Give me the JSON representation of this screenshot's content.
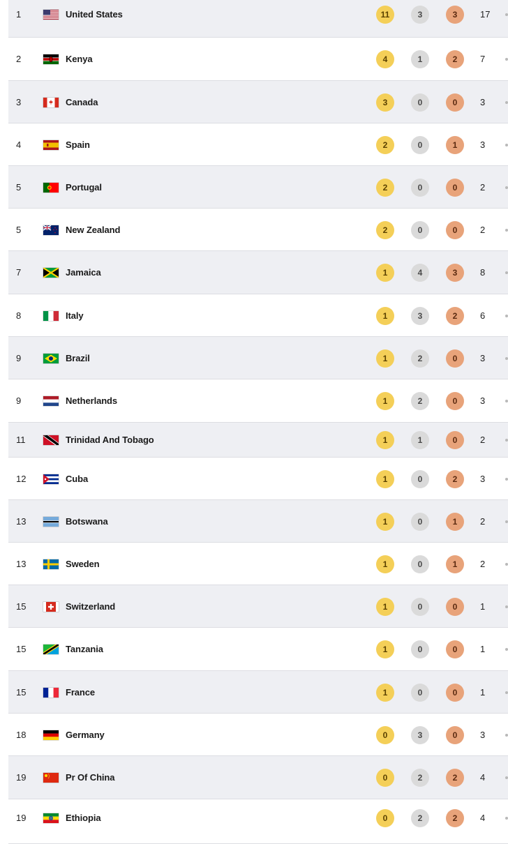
{
  "colors": {
    "row_shaded": "#eeeff3",
    "row_white": "#ffffff",
    "gold": "#f4cf58",
    "silver": "#dadada",
    "bronze": "#e8a37a"
  },
  "rows": [
    {
      "rank": "1",
      "country": "United States",
      "gold": "11",
      "silver": "3",
      "bronze": "3",
      "total": "17",
      "flag": "us-flag-icon"
    },
    {
      "rank": "2",
      "country": "Kenya",
      "gold": "4",
      "silver": "1",
      "bronze": "2",
      "total": "7",
      "flag": "kenya-flag-icon"
    },
    {
      "rank": "3",
      "country": "Canada",
      "gold": "3",
      "silver": "0",
      "bronze": "0",
      "total": "3",
      "flag": "canada-flag-icon"
    },
    {
      "rank": "4",
      "country": "Spain",
      "gold": "2",
      "silver": "0",
      "bronze": "1",
      "total": "3",
      "flag": "spain-flag-icon"
    },
    {
      "rank": "5",
      "country": "Portugal",
      "gold": "2",
      "silver": "0",
      "bronze": "0",
      "total": "2",
      "flag": "portugal-flag-icon"
    },
    {
      "rank": "5",
      "country": "New Zealand",
      "gold": "2",
      "silver": "0",
      "bronze": "0",
      "total": "2",
      "flag": "new-zealand-flag-icon"
    },
    {
      "rank": "7",
      "country": "Jamaica",
      "gold": "1",
      "silver": "4",
      "bronze": "3",
      "total": "8",
      "flag": "jamaica-flag-icon"
    },
    {
      "rank": "8",
      "country": "Italy",
      "gold": "1",
      "silver": "3",
      "bronze": "2",
      "total": "6",
      "flag": "italy-flag-icon"
    },
    {
      "rank": "9",
      "country": "Brazil",
      "gold": "1",
      "silver": "2",
      "bronze": "0",
      "total": "3",
      "flag": "brazil-flag-icon"
    },
    {
      "rank": "9",
      "country": "Netherlands",
      "gold": "1",
      "silver": "2",
      "bronze": "0",
      "total": "3",
      "flag": "netherlands-flag-icon"
    },
    {
      "rank": "11",
      "country": "Trinidad And Tobago",
      "gold": "1",
      "silver": "1",
      "bronze": "0",
      "total": "2",
      "flag": "trinidad-and-tobago-flag-icon"
    },
    {
      "rank": "12",
      "country": "Cuba",
      "gold": "1",
      "silver": "0",
      "bronze": "2",
      "total": "3",
      "flag": "cuba-flag-icon"
    },
    {
      "rank": "13",
      "country": "Botswana",
      "gold": "1",
      "silver": "0",
      "bronze": "1",
      "total": "2",
      "flag": "botswana-flag-icon"
    },
    {
      "rank": "13",
      "country": "Sweden",
      "gold": "1",
      "silver": "0",
      "bronze": "1",
      "total": "2",
      "flag": "sweden-flag-icon"
    },
    {
      "rank": "15",
      "country": "Switzerland",
      "gold": "1",
      "silver": "0",
      "bronze": "0",
      "total": "1",
      "flag": "switzerland-flag-icon"
    },
    {
      "rank": "15",
      "country": "Tanzania",
      "gold": "1",
      "silver": "0",
      "bronze": "0",
      "total": "1",
      "flag": "tanzania-flag-icon"
    },
    {
      "rank": "15",
      "country": "France",
      "gold": "1",
      "silver": "0",
      "bronze": "0",
      "total": "1",
      "flag": "france-flag-icon"
    },
    {
      "rank": "18",
      "country": "Germany",
      "gold": "0",
      "silver": "3",
      "bronze": "0",
      "total": "3",
      "flag": "germany-flag-icon"
    },
    {
      "rank": "19",
      "country": "Pr Of China",
      "gold": "0",
      "silver": "2",
      "bronze": "2",
      "total": "4",
      "flag": "china-flag-icon"
    },
    {
      "rank": "19",
      "country": "Ethiopia",
      "gold": "0",
      "silver": "2",
      "bronze": "2",
      "total": "4",
      "flag": "ethiopia-flag-icon"
    }
  ]
}
